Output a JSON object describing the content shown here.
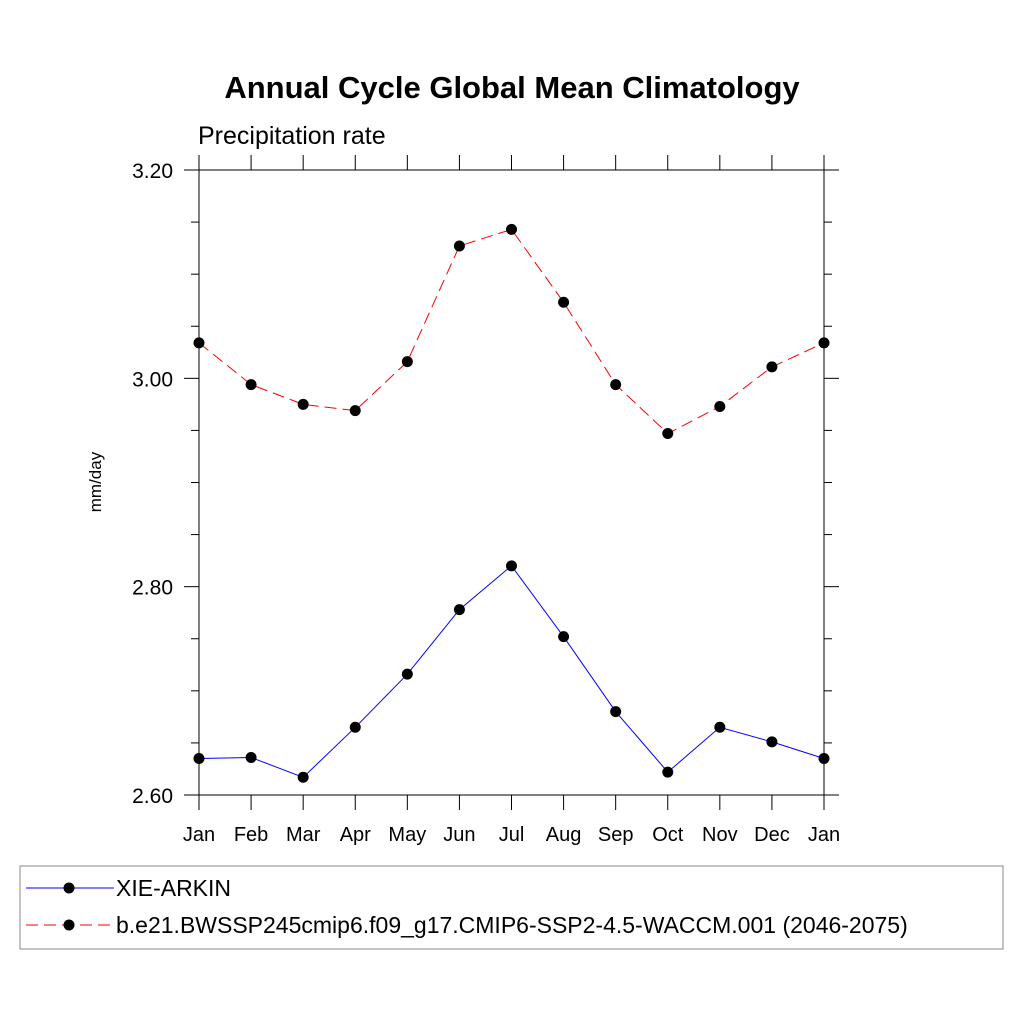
{
  "chart_data": {
    "type": "line",
    "title": "Annual Cycle Global Mean Climatology",
    "subtitle": "Precipitation rate",
    "xlabel": "",
    "ylabel": "mm/day",
    "categories": [
      "Jan",
      "Feb",
      "Mar",
      "Apr",
      "May",
      "Jun",
      "Jul",
      "Aug",
      "Sep",
      "Oct",
      "Nov",
      "Dec",
      "Jan"
    ],
    "ylim": [
      2.6,
      3.2
    ],
    "yticks": [
      2.6,
      2.8,
      3.0,
      3.2
    ],
    "ytick_labels": [
      "2.60",
      "2.80",
      "3.00",
      "3.20"
    ],
    "grid": false,
    "legend_position": "bottom",
    "series": [
      {
        "name": "XIE-ARKIN",
        "color": "#0000ff",
        "line_style": "solid",
        "marker": "filled-circle",
        "values": [
          2.635,
          2.636,
          2.617,
          2.665,
          2.716,
          2.778,
          2.82,
          2.752,
          2.68,
          2.622,
          2.665,
          2.651,
          2.635
        ]
      },
      {
        "name": "b.e21.BWSSP245cmip6.f09_g17.CMIP6-SSP2-4.5-WACCM.001 (2046-2075)",
        "color": "#ff0000",
        "line_style": "dashed",
        "marker": "filled-circle",
        "values": [
          3.034,
          2.994,
          2.975,
          2.969,
          3.016,
          3.127,
          3.143,
          3.073,
          2.994,
          2.947,
          2.973,
          3.011,
          3.034
        ]
      }
    ]
  }
}
